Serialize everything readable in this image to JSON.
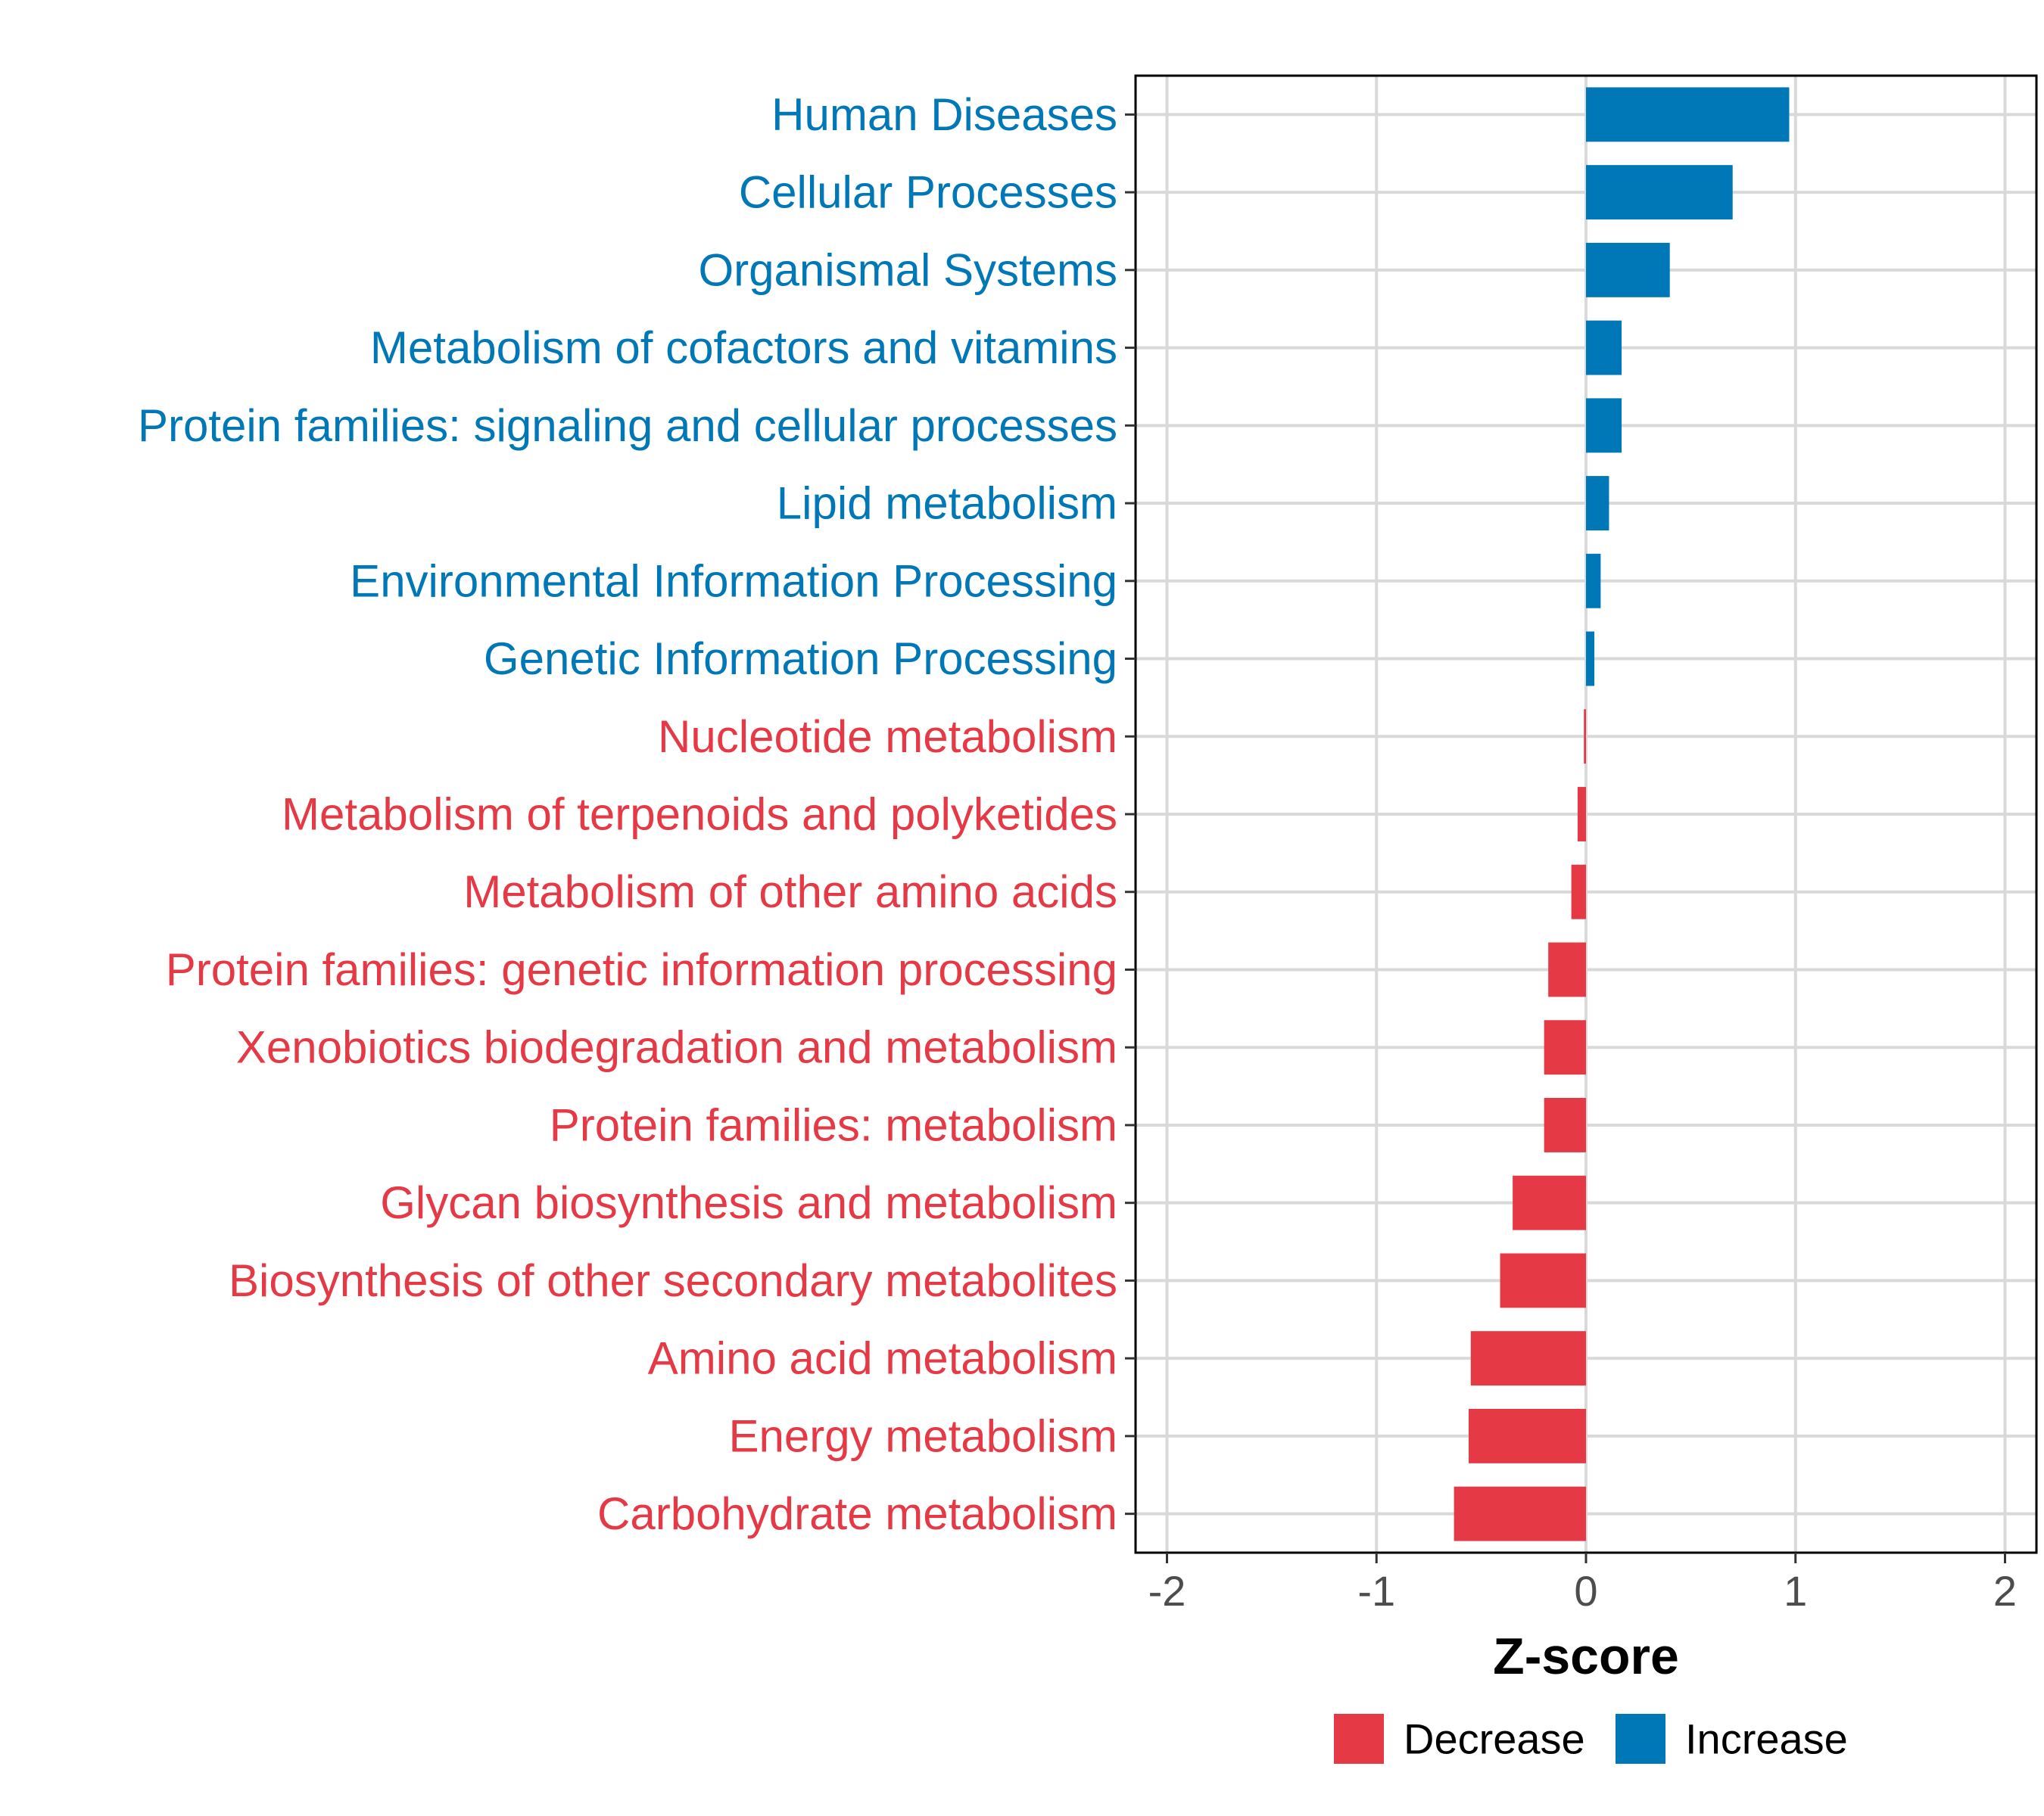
{
  "chart_data": {
    "type": "bar",
    "orientation": "horizontal",
    "title": "",
    "xlabel": "Z-score",
    "ylabel": "",
    "xlim": [
      -2.15,
      2.15
    ],
    "xticks": [
      -2,
      -1,
      0,
      1,
      2
    ],
    "xtick_labels": [
      "-2",
      "-1",
      "0",
      "1",
      "2"
    ],
    "grid": true,
    "legend_position": "bottom",
    "colors": {
      "Decrease": "#e63946",
      "Increase": "#0077b6"
    },
    "categories": [
      "Human Diseases",
      "Cellular Processes",
      "Organismal Systems",
      "Metabolism of cofactors and vitamins",
      "Protein families: signaling and cellular processes",
      "Lipid metabolism",
      "Environmental Information Processing",
      "Genetic Information Processing",
      "Nucleotide metabolism",
      "Metabolism of terpenoids and polyketides",
      "Metabolism of other amino acids",
      "Protein families: genetic information processing",
      "Xenobiotics biodegradation and metabolism",
      "Protein families: metabolism",
      "Glycan biosynthesis and metabolism",
      "Biosynthesis of other secondary metabolites",
      "Amino acid metabolism",
      "Energy metabolism",
      "Carbohydrate metabolism"
    ],
    "values": [
      0.97,
      0.7,
      0.4,
      0.17,
      0.17,
      0.11,
      0.07,
      0.04,
      -0.01,
      -0.04,
      -0.07,
      -0.18,
      -0.2,
      -0.2,
      -0.35,
      -0.41,
      -0.55,
      -0.56,
      -0.63
    ],
    "groups": [
      "Increase",
      "Increase",
      "Increase",
      "Increase",
      "Increase",
      "Increase",
      "Increase",
      "Increase",
      "Decrease",
      "Decrease",
      "Decrease",
      "Decrease",
      "Decrease",
      "Decrease",
      "Decrease",
      "Decrease",
      "Decrease",
      "Decrease",
      "Decrease"
    ],
    "legend": [
      {
        "name": "Decrease",
        "color": "#e63946"
      },
      {
        "name": "Increase",
        "color": "#0077b6"
      }
    ]
  }
}
